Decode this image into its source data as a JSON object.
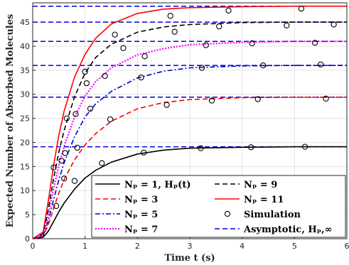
{
  "chart_data": {
    "type": "line",
    "xlabel": "Time t (s)",
    "ylabel": "Expected Number of Absorbed Molecules",
    "xlim": [
      0,
      6
    ],
    "ylim": [
      0,
      49
    ],
    "xticks": [
      "0",
      "1",
      "2",
      "3",
      "4",
      "5",
      "6"
    ],
    "yticks": [
      "0",
      "5",
      "10",
      "15",
      "20",
      "25",
      "30",
      "35",
      "40",
      "45"
    ],
    "grid": true,
    "legend_position": "bottom-right",
    "legend_columns": 2,
    "series": [
      {
        "name": "N_p = 1, H_p(t)",
        "label_display": "Nₚ = 1, Hₚ(t)",
        "style": "solid",
        "color": "#000000",
        "x": [
          0,
          0.2,
          0.3,
          0.4,
          0.5,
          0.6,
          0.8,
          1.0,
          1.2,
          1.5,
          2.0,
          2.5,
          3.0,
          4.0,
          5.0,
          6.0
        ],
        "y": [
          0,
          0.3,
          1.6,
          3.6,
          5.6,
          7.4,
          10.3,
          12.6,
          14.2,
          15.9,
          17.6,
          18.4,
          18.8,
          19.0,
          19.1,
          19.1
        ]
      },
      {
        "name": "N_p = 3",
        "label_display": "Nₚ = 3",
        "style": "dashed",
        "color": "#ff0000",
        "x": [
          0,
          0.2,
          0.3,
          0.4,
          0.5,
          0.6,
          0.8,
          1.0,
          1.2,
          1.5,
          2.0,
          2.5,
          3.0,
          4.0,
          5.0,
          6.0
        ],
        "y": [
          0,
          0.5,
          3.0,
          6.3,
          9.5,
          12.3,
          16.4,
          19.5,
          21.8,
          24.4,
          27.0,
          28.3,
          28.9,
          29.3,
          29.4,
          29.4
        ]
      },
      {
        "name": "N_p = 5",
        "label_display": "Nₚ = 5",
        "style": "dashdot",
        "color": "#0000cd",
        "x": [
          0,
          0.2,
          0.3,
          0.4,
          0.5,
          0.6,
          0.8,
          1.0,
          1.2,
          1.5,
          2.0,
          2.5,
          3.0,
          4.0,
          5.0,
          6.0
        ],
        "y": [
          0,
          0.6,
          3.8,
          8.2,
          12.2,
          15.8,
          21.2,
          25.3,
          28.0,
          30.6,
          33.4,
          34.8,
          35.5,
          35.9,
          36.0,
          36.0
        ]
      },
      {
        "name": "N_p = 7",
        "label_display": "Nₚ = 7",
        "style": "dotted",
        "color": "#ff00ff",
        "x": [
          0,
          0.2,
          0.3,
          0.4,
          0.5,
          0.6,
          0.8,
          1.0,
          1.2,
          1.5,
          2.0,
          2.5,
          3.0,
          4.0,
          5.0,
          6.0
        ],
        "y": [
          0,
          0.8,
          5.0,
          10.5,
          15.2,
          19.2,
          25.3,
          29.6,
          32.6,
          35.5,
          38.2,
          39.5,
          40.3,
          40.8,
          41.0,
          41.0
        ]
      },
      {
        "name": "N_p = 9",
        "label_display": "Nₚ = 9",
        "style": "dashed",
        "color": "#000000",
        "x": [
          0,
          0.2,
          0.3,
          0.4,
          0.5,
          0.6,
          0.8,
          1.0,
          1.2,
          1.5,
          2.0,
          2.5,
          3.0,
          4.0,
          5.0,
          6.0
        ],
        "y": [
          0,
          1.0,
          6.2,
          12.6,
          18.0,
          22.5,
          29.5,
          34.4,
          37.6,
          40.4,
          42.9,
          44.0,
          44.5,
          44.9,
          45.0,
          45.0
        ]
      },
      {
        "name": "N_p = 11",
        "label_display": "Nₚ = 11",
        "style": "solid",
        "color": "#ff0000",
        "x": [
          0,
          0.2,
          0.3,
          0.4,
          0.5,
          0.6,
          0.8,
          1.0,
          1.2,
          1.5,
          2.0,
          2.5,
          3.0,
          4.0,
          5.0,
          6.0
        ],
        "y": [
          0,
          1.4,
          8.0,
          15.3,
          21.5,
          26.5,
          33.6,
          38.3,
          41.6,
          44.6,
          46.8,
          47.7,
          48.0,
          48.2,
          48.3,
          48.3
        ]
      }
    ],
    "simulation": {
      "name": "Simulation",
      "points": [
        [
          0.45,
          6.8
        ],
        [
          0.8,
          12.0
        ],
        [
          1.32,
          15.7
        ],
        [
          2.12,
          17.9
        ],
        [
          3.21,
          18.8
        ],
        [
          4.17,
          19.0
        ],
        [
          5.2,
          19.1
        ],
        [
          0.6,
          12.5
        ],
        [
          1.48,
          24.8
        ],
        [
          2.56,
          27.8
        ],
        [
          3.42,
          28.7
        ],
        [
          4.3,
          29.0
        ],
        [
          5.6,
          29.1
        ],
        [
          0.55,
          16.2
        ],
        [
          1.1,
          27.0
        ],
        [
          2.07,
          33.5
        ],
        [
          3.23,
          35.5
        ],
        [
          4.4,
          36.0
        ],
        [
          5.5,
          36.2
        ],
        [
          0.62,
          17.8
        ],
        [
          0.85,
          18.9
        ],
        [
          1.38,
          33.8
        ],
        [
          2.14,
          37.9
        ],
        [
          3.31,
          40.2
        ],
        [
          4.19,
          40.6
        ],
        [
          5.39,
          40.7
        ],
        [
          0.82,
          25.9
        ],
        [
          1.03,
          32.3
        ],
        [
          1.73,
          39.6
        ],
        [
          2.71,
          43.0
        ],
        [
          3.56,
          44.1
        ],
        [
          4.85,
          44.3
        ],
        [
          5.75,
          44.5
        ],
        [
          0.4,
          14.8
        ],
        [
          0.65,
          25.0
        ],
        [
          1.0,
          34.7
        ],
        [
          1.57,
          42.4
        ],
        [
          2.63,
          46.3
        ],
        [
          3.74,
          47.4
        ],
        [
          5.13,
          47.8
        ]
      ]
    },
    "asymptotes": {
      "name": "Asymptotic, H_p,∞",
      "label_display": "Asymptotic, Hₚ,∞",
      "color": "#0000dd",
      "style": "dashed",
      "values": [
        19.1,
        29.4,
        36.0,
        41.0,
        45.0,
        48.3
      ]
    },
    "legend": [
      {
        "key": "np1",
        "label": "Nₚ = 1, Hₚ(t)",
        "style": "solid",
        "color": "#000000"
      },
      {
        "key": "np9",
        "label": "Nₚ = 9",
        "style": "dashed",
        "color": "#000000"
      },
      {
        "key": "np3",
        "label": "Nₚ = 3",
        "style": "dashed",
        "color": "#ff0000"
      },
      {
        "key": "np11",
        "label": "Nₚ = 11",
        "style": "solid",
        "color": "#ff0000"
      },
      {
        "key": "np5",
        "label": "Nₚ = 5",
        "style": "dashdot",
        "color": "#0000cd"
      },
      {
        "key": "sim",
        "label": "Simulation",
        "style": "marker",
        "color": "#000000"
      },
      {
        "key": "np7",
        "label": "Nₚ = 7",
        "style": "dotted",
        "color": "#ff00ff"
      },
      {
        "key": "asym",
        "label": "Asymptotic, Hₚ,∞",
        "style": "dashed",
        "color": "#0000dd"
      }
    ]
  }
}
